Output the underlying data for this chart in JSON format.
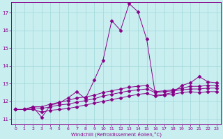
{
  "xlabel": "Windchill (Refroidissement éolien,°C)",
  "background_color": "#c8eef0",
  "grid_color": "#a0d8d8",
  "line_color": "#880088",
  "xlim": [
    -0.5,
    23.5
  ],
  "ylim": [
    10.7,
    17.6
  ],
  "yticks": [
    11,
    12,
    13,
    14,
    15,
    16,
    17
  ],
  "xticks": [
    0,
    1,
    2,
    3,
    4,
    5,
    6,
    7,
    8,
    9,
    10,
    11,
    12,
    13,
    14,
    15,
    16,
    17,
    18,
    19,
    20,
    21,
    22,
    23
  ],
  "series": [
    [
      11.55,
      11.55,
      11.7,
      11.1,
      11.8,
      11.9,
      12.2,
      12.55,
      12.15,
      13.2,
      14.3,
      16.55,
      16.0,
      17.5,
      17.05,
      15.5,
      12.35,
      12.4,
      12.5,
      12.9,
      13.05,
      13.4,
      13.1,
      13.05
    ],
    [
      11.55,
      11.55,
      11.7,
      11.7,
      11.85,
      11.95,
      12.05,
      12.2,
      12.25,
      12.35,
      12.5,
      12.6,
      12.7,
      12.8,
      12.85,
      12.9,
      12.55,
      12.6,
      12.65,
      12.75,
      12.85,
      12.85,
      12.9,
      12.9
    ],
    [
      11.55,
      11.55,
      11.65,
      11.6,
      11.7,
      11.8,
      11.85,
      11.95,
      12.05,
      12.15,
      12.3,
      12.4,
      12.5,
      12.6,
      12.65,
      12.7,
      12.5,
      12.55,
      12.6,
      12.65,
      12.7,
      12.7,
      12.75,
      12.75
    ],
    [
      11.55,
      11.55,
      11.55,
      11.4,
      11.5,
      11.55,
      11.6,
      11.7,
      11.8,
      11.9,
      12.0,
      12.1,
      12.2,
      12.3,
      12.4,
      12.45,
      12.3,
      12.35,
      12.4,
      12.5,
      12.55,
      12.5,
      12.55,
      12.55
    ]
  ]
}
